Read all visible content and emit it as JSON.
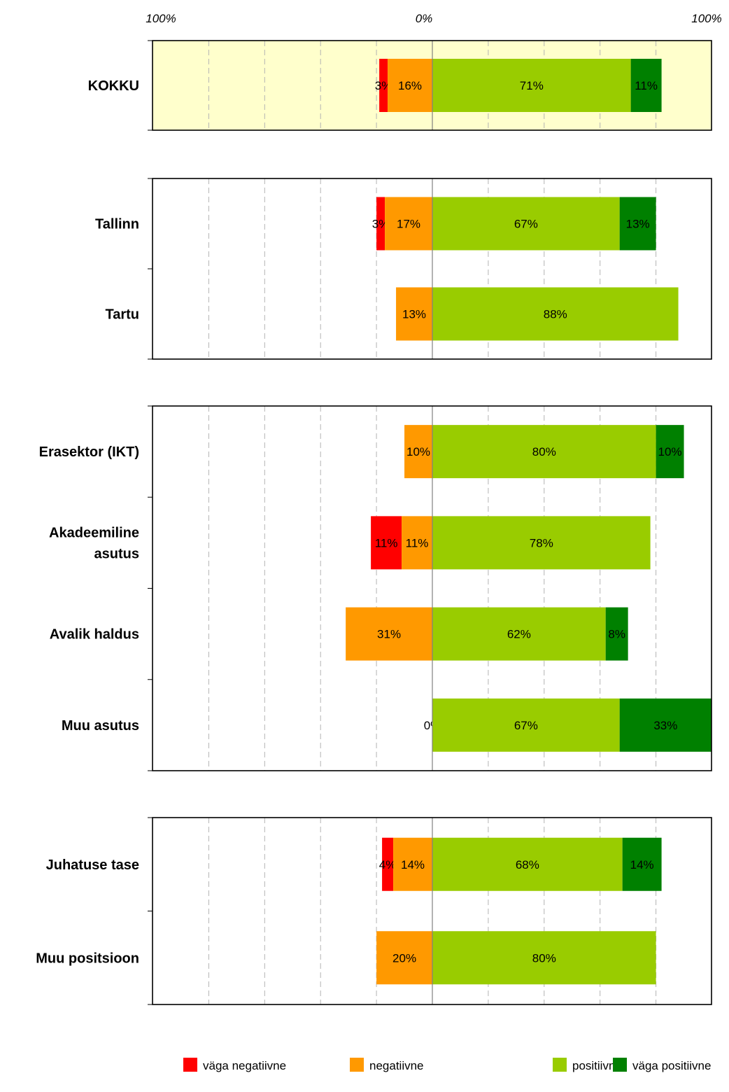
{
  "chart_data": {
    "type": "bar",
    "orientation": "horizontal",
    "stacking": "diverging",
    "top_axis_labels": [
      "100%",
      "0%",
      "100%"
    ],
    "xlim": [
      -100,
      100
    ],
    "grid": true,
    "legend_position": "bottom",
    "colors": {
      "vaga_negatiivne": "#ff0000",
      "negatiivne": "#ff9900",
      "positiivne": "#99cc00",
      "vaga_positiivne": "#008000",
      "highlight_panel": "#ffffcc"
    },
    "series": [
      {
        "key": "vaga_negatiivne",
        "name": "väga negatiivne"
      },
      {
        "key": "negatiivne",
        "name": "negatiivne"
      },
      {
        "key": "positiivne",
        "name": "positiivne"
      },
      {
        "key": "vaga_positiivne",
        "name": "väga positiivne"
      }
    ],
    "panels": [
      {
        "highlight": true,
        "categories": [
          {
            "name": [
              "KOKKU"
            ],
            "values": {
              "vaga_negatiivne": 3,
              "negatiivne": 16,
              "positiivne": 71,
              "vaga_positiivne": 11
            },
            "labels": [
              "3%",
              "16%",
              "71%",
              "11%"
            ]
          }
        ]
      },
      {
        "highlight": false,
        "categories": [
          {
            "name": [
              "Tallinn"
            ],
            "values": {
              "vaga_negatiivne": 3,
              "negatiivne": 17,
              "positiivne": 67,
              "vaga_positiivne": 13
            },
            "labels": [
              "3%",
              "17%",
              "67%",
              "13%"
            ]
          },
          {
            "name": [
              "Tartu"
            ],
            "values": {
              "vaga_negatiivne": 0,
              "negatiivne": 13,
              "positiivne": 88,
              "vaga_positiivne": 0
            },
            "labels": [
              "",
              "13%",
              "88%",
              ""
            ]
          }
        ]
      },
      {
        "highlight": false,
        "categories": [
          {
            "name": [
              "Erasektor (IKT)"
            ],
            "values": {
              "vaga_negatiivne": 0,
              "negatiivne": 10,
              "positiivne": 80,
              "vaga_positiivne": 10
            },
            "labels": [
              "",
              "10%",
              "80%",
              "10%"
            ]
          },
          {
            "name": [
              "Akadeemiline",
              "asutus"
            ],
            "values": {
              "vaga_negatiivne": 11,
              "negatiivne": 11,
              "positiivne": 78,
              "vaga_positiivne": 0
            },
            "labels": [
              "11%",
              "11%",
              "78%",
              ""
            ]
          },
          {
            "name": [
              "Avalik haldus"
            ],
            "values": {
              "vaga_negatiivne": 0,
              "negatiivne": 31,
              "positiivne": 62,
              "vaga_positiivne": 8
            },
            "labels": [
              "",
              "31%",
              "62%",
              "8%"
            ]
          },
          {
            "name": [
              "Muu asutus"
            ],
            "values": {
              "vaga_negatiivne": 0,
              "negatiivne": 0,
              "positiivne": 67,
              "vaga_positiivne": 33
            },
            "labels": [
              "",
              "0%",
              "67%",
              "33%"
            ]
          }
        ]
      },
      {
        "highlight": false,
        "categories": [
          {
            "name": [
              "Juhatuse tase"
            ],
            "values": {
              "vaga_negatiivne": 4,
              "negatiivne": 14,
              "positiivne": 68,
              "vaga_positiivne": 14
            },
            "labels": [
              "4%",
              "14%",
              "68%",
              "14%"
            ]
          },
          {
            "name": [
              "Muu positsioon"
            ],
            "values": {
              "vaga_negatiivne": 0,
              "negatiivne": 20,
              "positiivne": 80,
              "vaga_positiivne": 0
            },
            "labels": [
              "",
              "20%",
              "80%",
              ""
            ]
          }
        ]
      }
    ]
  }
}
